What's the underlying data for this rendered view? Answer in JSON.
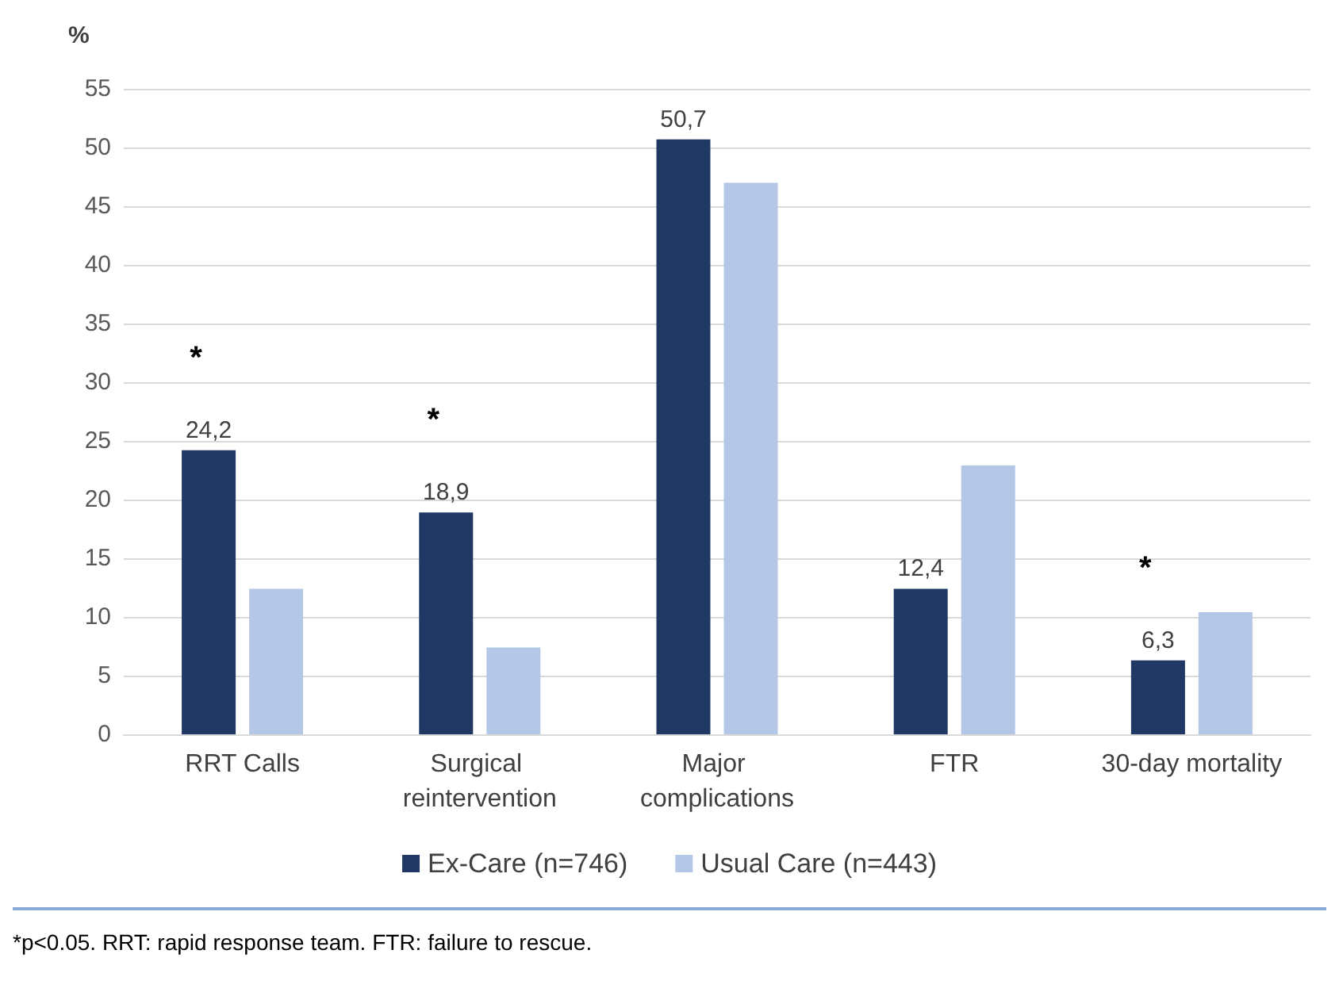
{
  "chart_data": {
    "type": "bar",
    "ylabel": "%",
    "categories": [
      "RRT Calls",
      "Surgical reintervention",
      "Major complications",
      "FTR",
      "30-day mortality"
    ],
    "series": [
      {
        "name": "Ex-Care (n=746)",
        "color": "#1f3864",
        "values": [
          24.2,
          18.9,
          50.7,
          12.4,
          6.3
        ],
        "value_labels": [
          "24,2",
          "18,9",
          "50,7",
          "12,4",
          "6,3"
        ]
      },
      {
        "name": "Usual Care (n=443)",
        "color": "#b4c7e7",
        "values": [
          12.4,
          7.4,
          47.0,
          22.9,
          10.4
        ]
      }
    ],
    "ylim": [
      0,
      55
    ],
    "yticks": [
      0,
      5,
      10,
      15,
      20,
      25,
      30,
      35,
      40,
      45,
      50,
      55
    ],
    "grid": "y",
    "legend": "bottom",
    "annotations": [
      {
        "text": "*",
        "x": "RRT Calls",
        "y": 24.2
      },
      {
        "text": "*",
        "x": "Surgical reintervention",
        "y": 18.9
      },
      {
        "text": "*",
        "x": "30-day mortality",
        "y": 6.3
      },
      "*p<0.05. RRT: rapid response team. FTR: failure to rescue."
    ]
  }
}
